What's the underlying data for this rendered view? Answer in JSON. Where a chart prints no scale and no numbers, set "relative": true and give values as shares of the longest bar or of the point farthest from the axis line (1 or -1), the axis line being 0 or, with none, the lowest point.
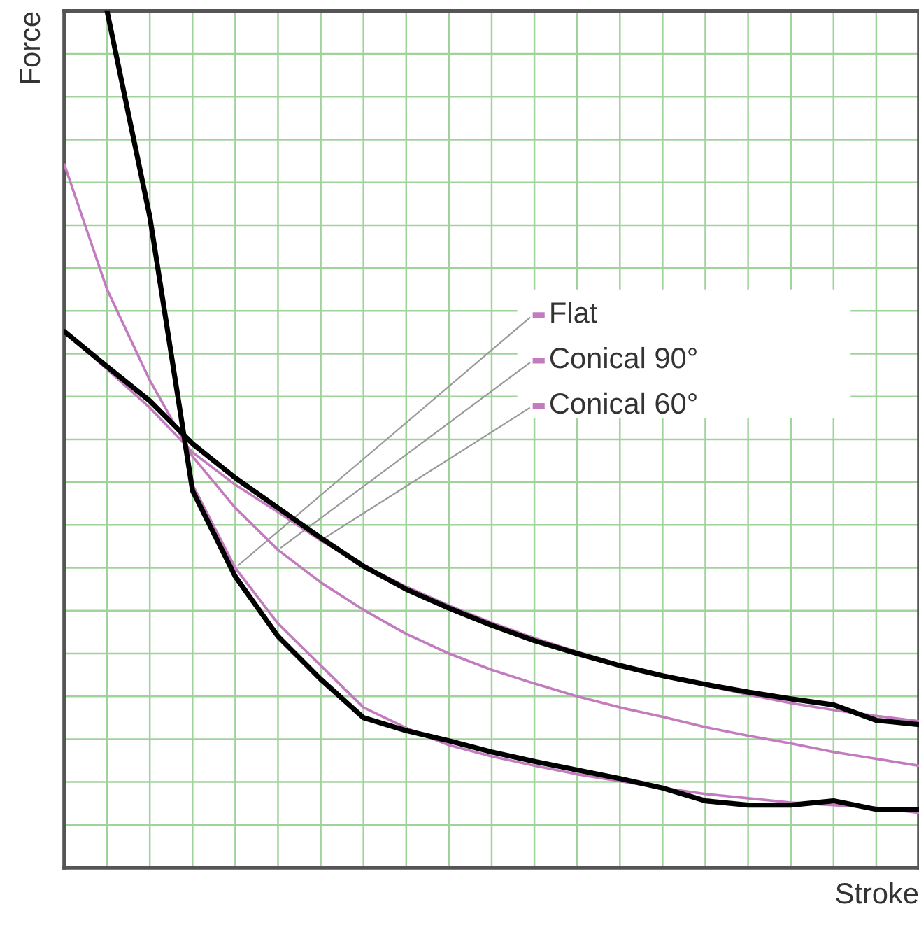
{
  "chart_data": {
    "type": "line",
    "relative": true,
    "xlabel": "Stroke",
    "ylabel": "Force",
    "grid": true,
    "legend": "right",
    "marker": "none",
    "line_style": "solid",
    "categories": [
      null,
      null,
      null,
      null,
      null,
      null,
      null,
      null,
      null,
      null,
      null,
      null,
      null,
      null,
      null,
      null,
      null,
      null,
      null,
      null,
      null
    ],
    "series": [
      {
        "name": "Flat",
        "color": "#c27bbf",
        "values": [
          null,
          1.0,
          0.764,
          0.447,
          0.35,
          0.285,
          0.236,
          0.187,
          0.163,
          0.143,
          0.13,
          0.119,
          0.109,
          0.101,
          0.093,
          0.086,
          0.081,
          0.076,
          0.073,
          0.07,
          0.064
        ]
      },
      {
        "name": "Conical 90°",
        "color": "#c27bbf",
        "values": [
          0.821,
          0.675,
          0.569,
          0.48,
          0.42,
          0.371,
          0.333,
          0.301,
          0.273,
          0.25,
          0.231,
          0.215,
          0.2,
          0.187,
          0.176,
          0.164,
          0.154,
          0.145,
          0.135,
          0.127,
          0.119
        ]
      },
      {
        "name": "Conical 60°",
        "color": "#c27bbf",
        "values": [
          0.626,
          0.582,
          0.537,
          0.485,
          0.447,
          0.415,
          0.382,
          0.353,
          0.328,
          0.306,
          0.286,
          0.268,
          0.252,
          0.237,
          0.224,
          0.213,
          0.202,
          0.192,
          0.184,
          0.177,
          0.171
        ]
      },
      {
        "color": "#000000",
        "values": [
          null,
          1.0,
          0.76,
          0.44,
          0.34,
          0.27,
          0.22,
          0.175,
          0.16,
          0.148,
          0.135,
          0.124,
          0.114,
          0.104,
          0.093,
          0.078,
          0.073,
          0.073,
          0.078,
          0.068,
          0.068
        ]
      },
      {
        "color": "#000000",
        "values": [
          0.626,
          0.585,
          0.545,
          0.495,
          0.455,
          0.42,
          0.385,
          0.352,
          0.325,
          0.303,
          0.283,
          0.265,
          0.25,
          0.236,
          0.224,
          0.214,
          0.205,
          0.197,
          0.19,
          0.172,
          0.167
        ]
      }
    ]
  }
}
